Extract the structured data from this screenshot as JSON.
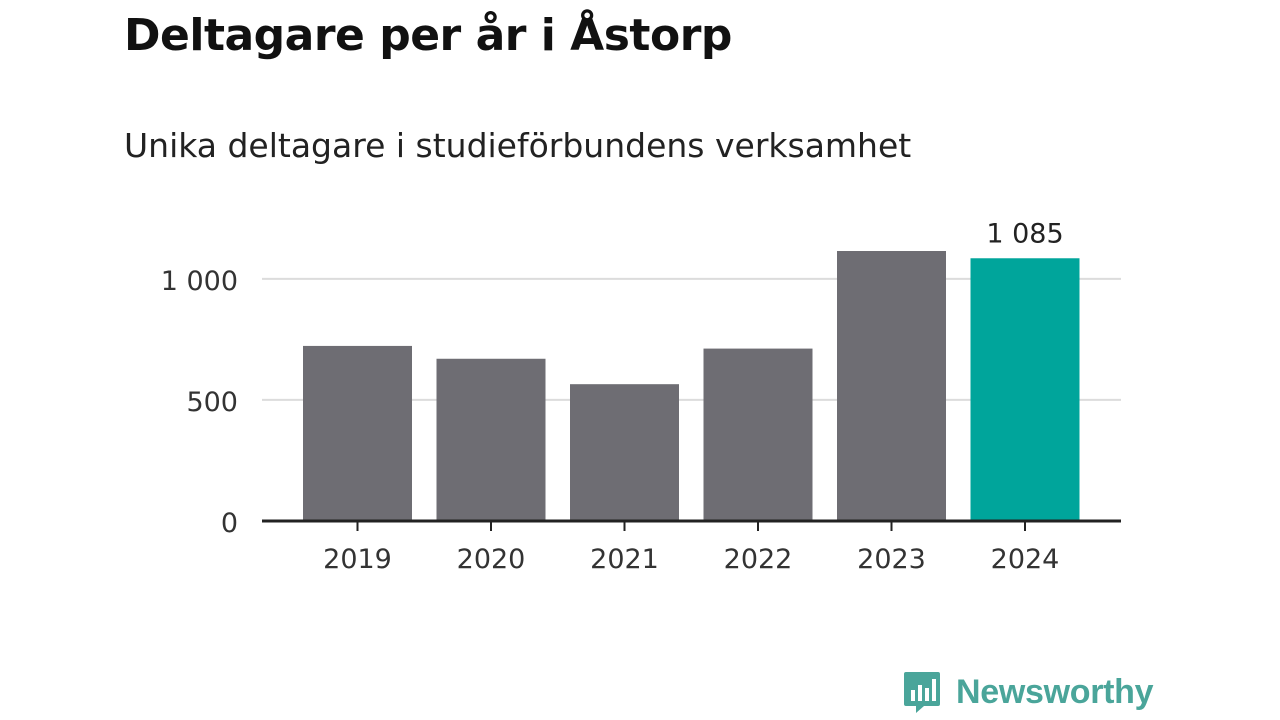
{
  "title": "Deltagare per år i Åstorp",
  "subtitle": "Unika deltagare i studieförbundens verksamhet",
  "brand": "Newsworthy",
  "colors": {
    "bar": "#6e6d73",
    "highlight": "#00a59b",
    "grid": "#dcdcdc",
    "axis": "#222222",
    "brand": "#4aa59a"
  },
  "chart_data": {
    "type": "bar",
    "categories": [
      "2019",
      "2020",
      "2021",
      "2022",
      "2023",
      "2024"
    ],
    "values": [
      723,
      670,
      565,
      712,
      1115,
      1085
    ],
    "highlight_index": 5,
    "data_labels": [
      "",
      "",
      "",
      "",
      "",
      "1 085"
    ],
    "yticks": [
      0,
      500,
      1000
    ],
    "ytick_labels": [
      "0",
      "500",
      "1 000"
    ],
    "ylim": [
      0,
      1115
    ],
    "grid": true
  }
}
